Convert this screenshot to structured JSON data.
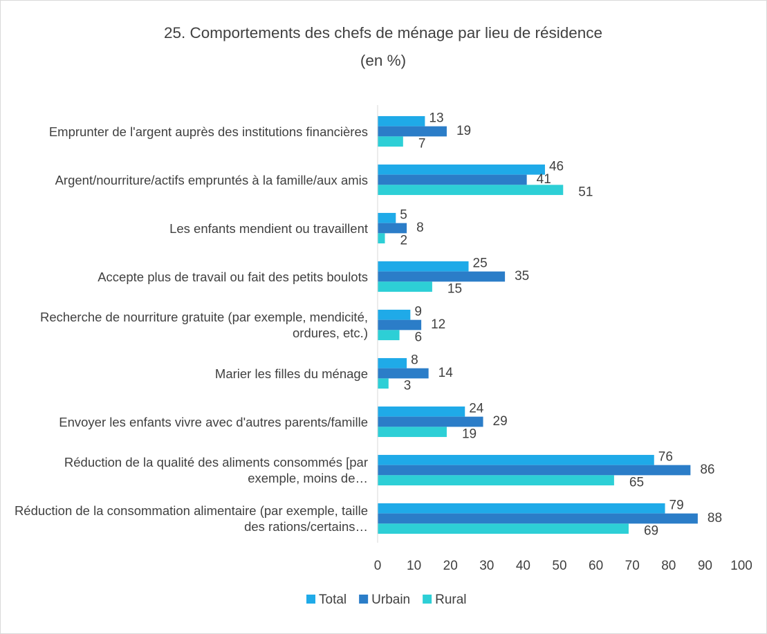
{
  "chart_data": {
    "type": "bar",
    "orientation": "horizontal",
    "title": "25. Comportements des chefs de ménage par lieu de résidence (en %)",
    "categories": [
      "Emprunter de l'argent auprès des institutions financières",
      "Argent/nourriture/actifs empruntés à la famille/aux amis",
      "Les enfants mendient ou travaillent",
      "Accepte plus de travail ou fait des petits boulots",
      "Recherche de nourriture gratuite (par exemple, mendicité, ordures, etc.)",
      "Marier les filles du ménage",
      "Envoyer les enfants vivre avec d'autres parents/famille",
      "Réduction de la qualité des aliments consommés [par exemple, moins de…",
      "Réduction de la consommation alimentaire (par exemple, taille des rations/certains…"
    ],
    "series": [
      {
        "name": "Total",
        "color": "#1faae8",
        "values": [
          13,
          46,
          5,
          25,
          9,
          8,
          24,
          76,
          79
        ]
      },
      {
        "name": "Urbain",
        "color": "#2b7dc8",
        "values": [
          19,
          41,
          8,
          35,
          12,
          14,
          29,
          86,
          88
        ]
      },
      {
        "name": "Rural",
        "color": "#2dcfd6",
        "values": [
          7,
          51,
          2,
          15,
          6,
          3,
          19,
          65,
          69
        ]
      }
    ],
    "xlim": [
      0,
      100
    ],
    "xticks": [
      0,
      10,
      20,
      30,
      40,
      50,
      60,
      70,
      80,
      90,
      100
    ],
    "grid": false,
    "legend": "bottom"
  }
}
